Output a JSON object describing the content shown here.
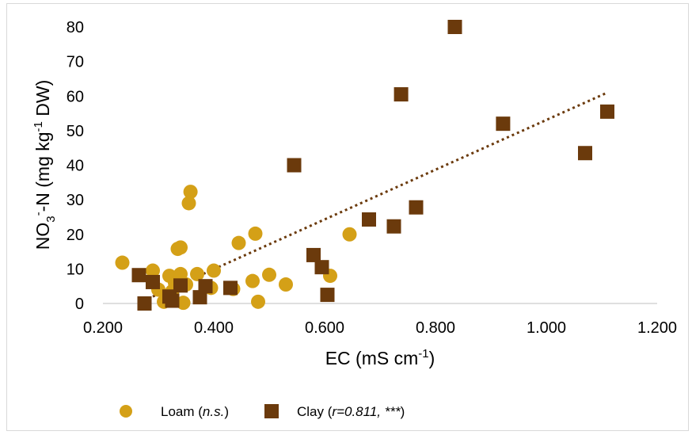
{
  "chart_data": {
    "type": "scatter",
    "xlabel": {
      "main": "EC (mS cm",
      "sup": "-1",
      "tail": ")"
    },
    "ylabel": {
      "a": "NO",
      "sub": "3",
      "sup1": "-",
      "b": "-N (mg kg",
      "sup2": "-1",
      "c": " DW)"
    },
    "xlim": [
      0.2,
      1.2
    ],
    "ylim": [
      0,
      80
    ],
    "x_ticks": [
      "0.200",
      "0.400",
      "0.600",
      "0.800",
      "1.000",
      "1.200"
    ],
    "y_ticks": [
      "0",
      "10",
      "20",
      "30",
      "40",
      "50",
      "60",
      "70",
      "80"
    ],
    "grid": false,
    "legend_position": "bottom",
    "series": [
      {
        "name": "Loam",
        "annotation": "n.s.",
        "marker": "circle",
        "color": "#d4a017",
        "points": [
          [
            0.235,
            11.8
          ],
          [
            0.29,
            9.5
          ],
          [
            0.3,
            4.0
          ],
          [
            0.31,
            0.5
          ],
          [
            0.32,
            8.0
          ],
          [
            0.325,
            3.5
          ],
          [
            0.33,
            6.0
          ],
          [
            0.335,
            15.8
          ],
          [
            0.34,
            16.2
          ],
          [
            0.34,
            8.5
          ],
          [
            0.345,
            0.2
          ],
          [
            0.35,
            5.5
          ],
          [
            0.355,
            29.0
          ],
          [
            0.358,
            32.3
          ],
          [
            0.37,
            8.5
          ],
          [
            0.395,
            4.5
          ],
          [
            0.4,
            9.5
          ],
          [
            0.435,
            4.2
          ],
          [
            0.445,
            17.5
          ],
          [
            0.47,
            6.5
          ],
          [
            0.475,
            20.2
          ],
          [
            0.48,
            0.5
          ],
          [
            0.5,
            8.3
          ],
          [
            0.53,
            5.5
          ],
          [
            0.61,
            8.0
          ],
          [
            0.645,
            20.0
          ]
        ]
      },
      {
        "name": "Clay",
        "annotation": "r=0.811, ***",
        "marker": "square",
        "color": "#6b3a0c",
        "points": [
          [
            0.265,
            8.2
          ],
          [
            0.275,
            0.0
          ],
          [
            0.29,
            6.2
          ],
          [
            0.32,
            2.0
          ],
          [
            0.325,
            0.8
          ],
          [
            0.34,
            5.2
          ],
          [
            0.375,
            1.8
          ],
          [
            0.385,
            5.0
          ],
          [
            0.43,
            4.5
          ],
          [
            0.545,
            40.0
          ],
          [
            0.58,
            14.0
          ],
          [
            0.595,
            10.5
          ],
          [
            0.605,
            2.5
          ],
          [
            0.68,
            24.3
          ],
          [
            0.725,
            22.3
          ],
          [
            0.738,
            60.5
          ],
          [
            0.765,
            27.8
          ],
          [
            0.835,
            80.0
          ],
          [
            0.922,
            52.0
          ],
          [
            1.07,
            43.5
          ],
          [
            1.11,
            55.5
          ]
        ],
        "trendline": {
          "style": "dotted",
          "x": [
            0.29,
            1.11
          ],
          "y": [
            2.0,
            61.0
          ]
        }
      }
    ]
  }
}
